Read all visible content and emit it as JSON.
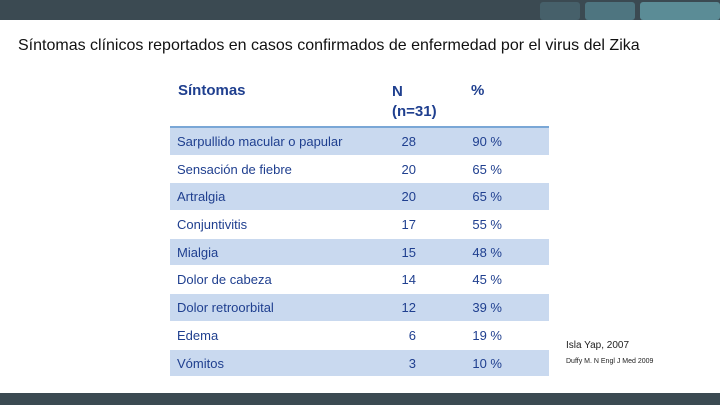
{
  "title": "Síntomas clínicos reportados en casos confirmados de enfermedad por el virus del Zika",
  "table": {
    "headers": {
      "symptom": "Síntomas",
      "n_line1": "N",
      "n_line2": "(n=31)",
      "percent": "%"
    },
    "rows": [
      {
        "symptom": "Sarpullido macular o papular",
        "n": "28",
        "percent": "90 %"
      },
      {
        "symptom": "Sensación de fiebre",
        "n": "20",
        "percent": "65 %"
      },
      {
        "symptom": "Artralgia",
        "n": "20",
        "percent": "65 %"
      },
      {
        "symptom": "Conjuntivitis",
        "n": "17",
        "percent": "55 %"
      },
      {
        "symptom": "Mialgia",
        "n": "15",
        "percent": "48 %"
      },
      {
        "symptom": "Dolor de cabeza",
        "n": "14",
        "percent": "45 %"
      },
      {
        "symptom": "Dolor retroorbital",
        "n": "12",
        "percent": "39 %"
      },
      {
        "symptom": "Edema",
        "n": "6",
        "percent": "19 %"
      },
      {
        "symptom": "Vómitos",
        "n": "3",
        "percent": "10 %"
      }
    ]
  },
  "sources": {
    "line1": "Isla Yap, 2007",
    "line2": "Duffy M. N Engl J Med 2009"
  },
  "colors": {
    "header_text": "#1f3f8f",
    "row_shade": "#c9d9ef",
    "band": "#3b4a52"
  }
}
